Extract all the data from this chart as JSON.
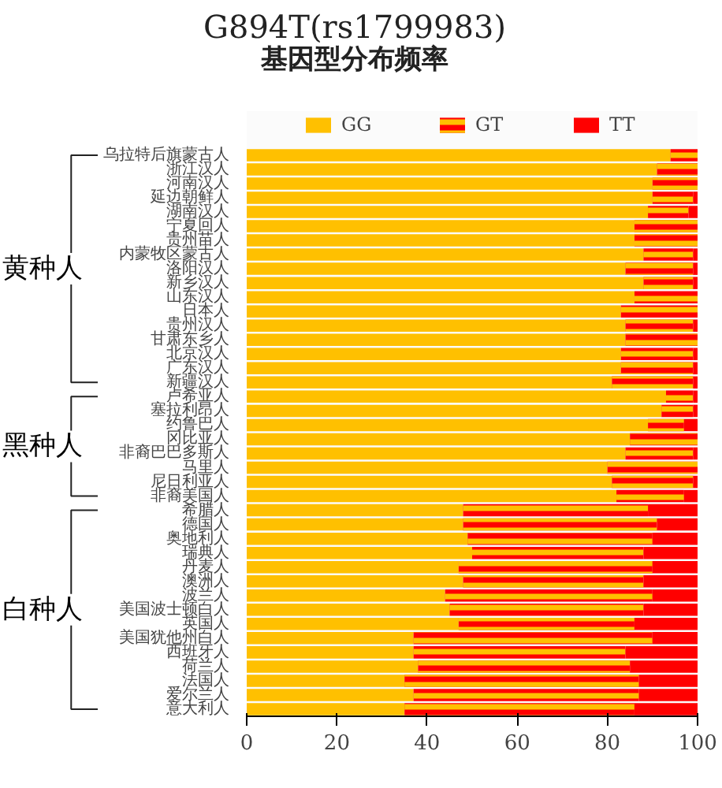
{
  "chart_data": {
    "type": "bar",
    "orientation": "horizontal",
    "stacked": true,
    "title": "G894T(rs1799983)",
    "subtitle": "基因型分布频率",
    "categories": [
      "乌拉特后旗蒙古人",
      "浙江汉人",
      "河南汉人",
      "延边朝鲜人",
      "湖南汉人",
      "宁夏回人",
      "贵州苗人",
      "内蒙牧区蒙古人",
      "洛阳汉人",
      "新乡汉人",
      "山东汉人",
      "日本人",
      "贵州汉人",
      "甘肃东乡人",
      "北京汉人",
      "广东汉人",
      "新疆汉人",
      "卢希亚人",
      "塞拉利昂人",
      "约鲁巴人",
      "冈比亚人",
      "非裔巴巴多斯人",
      "马里人",
      "尼日利亚人",
      "非裔美国人",
      "希腊人",
      "德国人",
      "奥地利人",
      "瑞典人",
      "丹麦人",
      "澳洲人",
      "波兰人",
      "美国波士顿白人",
      "英国人",
      "美国犹他州白人",
      "西班牙人",
      "荷兰人",
      "法国人",
      "爱尔兰人",
      "意大利人"
    ],
    "series": [
      {
        "name": "GG",
        "color": "#ffc000",
        "values": [
          94,
          91,
          90,
          90,
          89,
          86,
          86,
          88,
          84,
          88,
          86,
          83,
          84,
          84,
          83,
          83,
          81,
          93,
          92,
          89,
          85,
          84,
          80,
          81,
          82,
          48,
          48,
          49,
          50,
          47,
          48,
          44,
          45,
          47,
          37,
          37,
          38,
          35,
          37,
          35
        ]
      },
      {
        "name": "GT",
        "color": "#ff0000",
        "values": [
          6,
          9,
          10,
          9,
          9,
          14,
          14,
          11,
          15,
          11,
          14,
          17,
          15,
          16,
          16,
          16,
          18,
          6,
          7,
          8,
          15,
          15,
          20,
          18,
          15,
          41,
          43,
          41,
          38,
          43,
          40,
          46,
          43,
          39,
          53,
          47,
          47,
          52,
          50,
          51
        ]
      },
      {
        "name": "TT",
        "color": "#ff0000",
        "values": [
          0,
          0,
          0,
          1,
          2,
          0,
          0,
          1,
          1,
          1,
          0,
          0,
          1,
          0,
          1,
          1,
          1,
          1,
          1,
          3,
          0,
          1,
          0,
          1,
          3,
          11,
          9,
          10,
          12,
          10,
          12,
          10,
          12,
          14,
          10,
          16,
          15,
          13,
          13,
          14
        ]
      }
    ],
    "xlim": [
      0,
      100
    ],
    "xticks": [
      0,
      20,
      40,
      60,
      80,
      100
    ],
    "legend": "top",
    "annotations": [
      "黄种人",
      "黑种人",
      "白种人"
    ]
  }
}
